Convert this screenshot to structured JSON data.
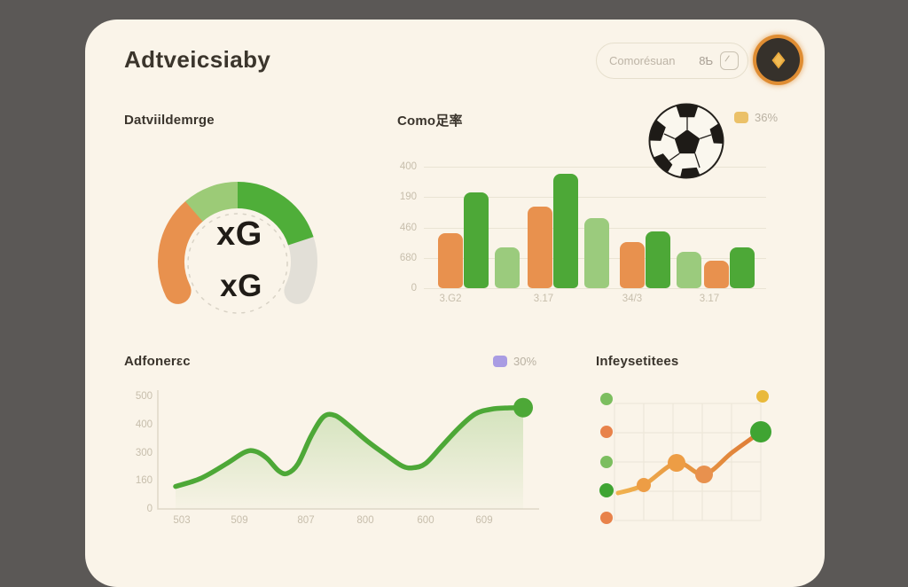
{
  "app_title": "Adtveicsiaby",
  "header": {
    "search_text": "Comorésuan",
    "search_shortcut": "8Ƅ"
  },
  "gauge_section": {
    "title": "Datviildemrge",
    "center_label": "xG",
    "sub_label": "xG"
  },
  "bar_section": {
    "title": "Como足率",
    "legend_label": "36%"
  },
  "line_section": {
    "title": "Adfonerεc",
    "legend_label": "30%"
  },
  "scatter_section": {
    "title": "Infeysetitees"
  },
  "chart_data": [
    {
      "type": "pie",
      "variant": "gauge",
      "title": "Datviildemrge",
      "center_label": "xG",
      "start_deg": 154,
      "segments": [
        {
          "name": "orange",
          "sweep_deg": 75,
          "color": "#E8914E"
        },
        {
          "name": "light-green",
          "sweep_deg": 41,
          "color": "#9CCB77"
        },
        {
          "name": "green",
          "sweep_deg": 72,
          "color": "#4FAE39"
        },
        {
          "name": "gray",
          "sweep_deg": 44,
          "color": "#E2DFD7"
        }
      ]
    },
    {
      "type": "bar",
      "title": "Como足率",
      "legend": "36%",
      "legend_color": "#EBC169",
      "categories": [
        "3.G2",
        "3.17",
        "34/3",
        "3.17"
      ],
      "series": [
        {
          "name": "orange",
          "color": "#E8914E",
          "values": [
            181,
            269,
            152,
            92
          ]
        },
        {
          "name": "green",
          "color": "#4DA837",
          "values": [
            315,
            377,
            187,
            134
          ]
        },
        {
          "name": "light-green",
          "color": "#9BCB7D",
          "values": [
            134,
            232,
            120,
            null
          ]
        }
      ],
      "y_ticks": [
        "400",
        "190",
        "460",
        "680",
        "0"
      ],
      "ylim": [
        0,
        400
      ],
      "grid": true
    },
    {
      "type": "area",
      "title": "Adfonerεc",
      "legend": "30%",
      "legend_color": "#A99CE3",
      "color": "#4DA837",
      "x_ticks": [
        "503",
        "509",
        "807",
        "800",
        "600",
        "609"
      ],
      "y_ticks": [
        "500",
        "400",
        "300",
        "160",
        "0"
      ],
      "ylim": [
        0,
        500
      ],
      "points": [
        [
          52,
          100
        ],
        [
          80,
          135
        ],
        [
          109,
          200
        ],
        [
          130,
          252
        ],
        [
          142,
          256
        ],
        [
          155,
          225
        ],
        [
          168,
          170
        ],
        [
          178,
          158
        ],
        [
          190,
          200
        ],
        [
          205,
          325
        ],
        [
          219,
          410
        ],
        [
          232,
          415
        ],
        [
          247,
          372
        ],
        [
          268,
          302
        ],
        [
          290,
          238
        ],
        [
          308,
          190
        ],
        [
          320,
          183
        ],
        [
          334,
          202
        ],
        [
          352,
          278
        ],
        [
          372,
          362
        ],
        [
          390,
          422
        ],
        [
          408,
          443
        ],
        [
          428,
          449
        ],
        [
          444,
          450
        ]
      ],
      "end_marker": {
        "x": 444,
        "value": 450,
        "r": 11
      }
    },
    {
      "type": "scatter",
      "title": "Infeysetitees",
      "line_color_start": "#F0B14E",
      "line_color_end": "#DE7A36",
      "line_points": [
        [
          21,
          116
        ],
        [
          50,
          107
        ],
        [
          87,
          82
        ],
        [
          118,
          95
        ],
        [
          150,
          70
        ],
        [
          182,
          47
        ]
      ],
      "markers": [
        {
          "x": 50,
          "y": 107,
          "r": 8,
          "color": "#ED9D45"
        },
        {
          "x": 87,
          "y": 82,
          "r": 10,
          "color": "#ED9D45"
        },
        {
          "x": 118,
          "y": 95,
          "r": 10,
          "color": "#E8914E"
        },
        {
          "x": 182,
          "y": 47,
          "r": 12,
          "color": "#3FA432"
        }
      ],
      "side_dots": [
        {
          "x": 8,
          "y": 10,
          "r": 7,
          "color": "#7CBE5F"
        },
        {
          "x": 8,
          "y": 47,
          "r": 7,
          "color": "#E8824A"
        },
        {
          "x": 8,
          "y": 81,
          "r": 7,
          "color": "#7CBE5F"
        },
        {
          "x": 8,
          "y": 113,
          "r": 8,
          "color": "#3FA432"
        },
        {
          "x": 8,
          "y": 144,
          "r": 7,
          "color": "#E8824A"
        }
      ],
      "accent_dot": {
        "x": 184,
        "y": 7,
        "r": 7,
        "color": "#E9B93B"
      }
    }
  ]
}
